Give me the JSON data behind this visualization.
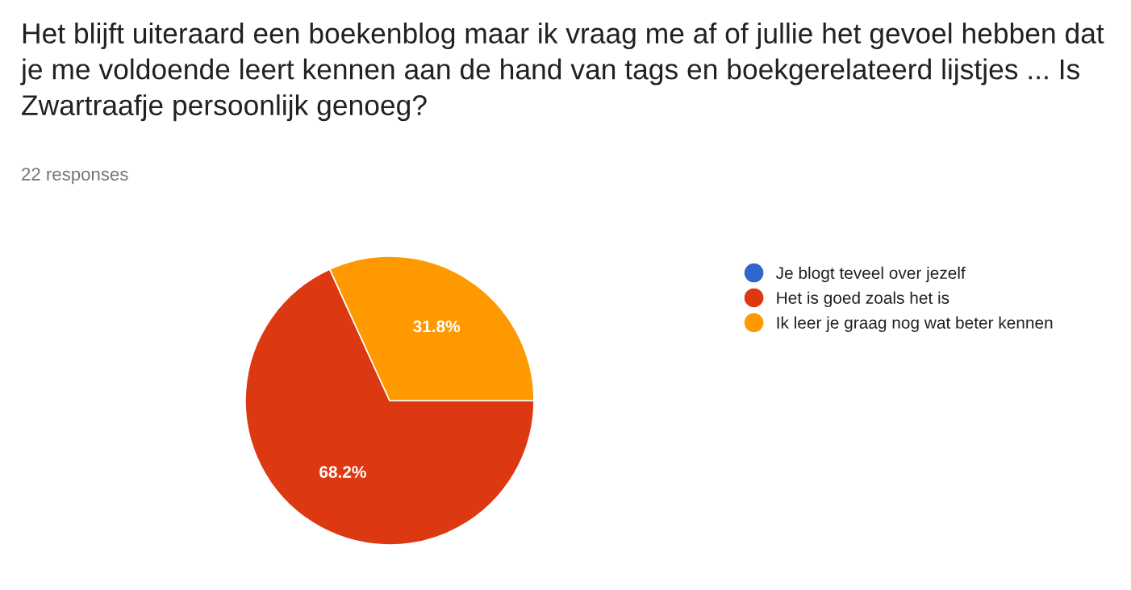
{
  "chart_data": {
    "type": "pie",
    "title": "Het blijft uiteraard een boekenblog maar ik vraag me af of jullie het gevoel hebben dat je me voldoende leert kennen aan de hand van tags en boekgerelateerd lijstjes ... Is Zwartraafje persoonlijk genoeg?",
    "subtitle": "22 responses",
    "categories": [
      "Je blogt teveel over jezelf",
      "Het is goed zoals het is",
      "Ik leer je graag nog wat beter kennen"
    ],
    "values": [
      0,
      68.2,
      31.8
    ],
    "colors": [
      "#3366cc",
      "#dc3912",
      "#ff9900"
    ],
    "value_labels": [
      null,
      "68.2%",
      "31.8%"
    ],
    "legend": "right"
  }
}
